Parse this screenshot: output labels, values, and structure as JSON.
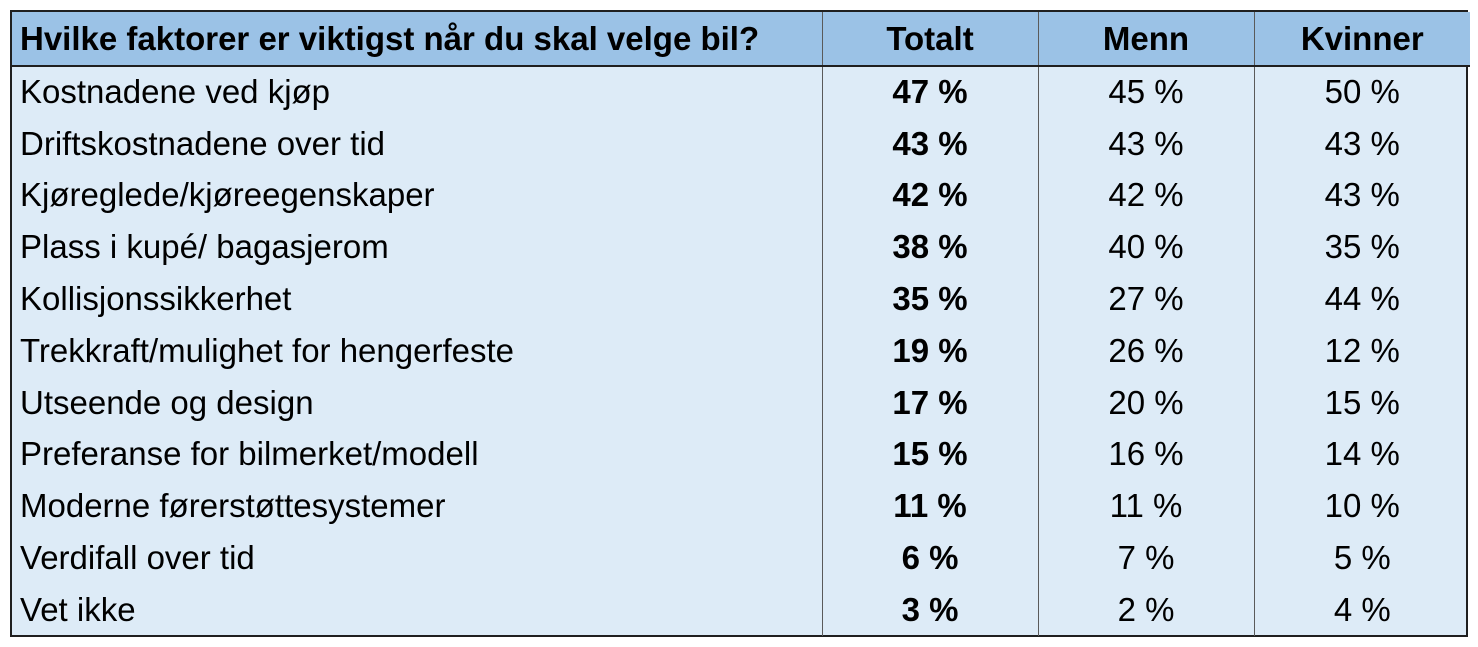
{
  "table": {
    "headers": {
      "question": "Hvilke faktorer er viktigst når du skal velge bil?",
      "total": "Totalt",
      "men": "Menn",
      "women": "Kvinner"
    },
    "rows": [
      {
        "factor": "Kostnadene ved kjøp",
        "total": "47 %",
        "men": "45 %",
        "women": "50 %"
      },
      {
        "factor": "Driftskostnadene over tid",
        "total": "43 %",
        "men": "43 %",
        "women": "43 %"
      },
      {
        "factor": "Kjøreglede/kjøreegenskaper",
        "total": "42 %",
        "men": "42 %",
        "women": "43 %"
      },
      {
        "factor": "Plass i kupé/ bagasjerom",
        "total": "38 %",
        "men": "40 %",
        "women": "35 %"
      },
      {
        "factor": "Kollisjonssikkerhet",
        "total": "35 %",
        "men": "27 %",
        "women": "44 %"
      },
      {
        "factor": "Trekkraft/mulighet for hengerfeste",
        "total": "19 %",
        "men": "26 %",
        "women": "12 %"
      },
      {
        "factor": "Utseende og design",
        "total": "17 %",
        "men": "20 %",
        "women": "15 %"
      },
      {
        "factor": "Preferanse for bilmerket/modell",
        "total": "15 %",
        "men": "16 %",
        "women": "14 %"
      },
      {
        "factor": "Moderne førerstøttesystemer",
        "total": "11 %",
        "men": "11 %",
        "women": "10 %"
      },
      {
        "factor": "Verdifall over tid",
        "total": "6 %",
        "men": "7 %",
        "women": "5 %"
      },
      {
        "factor": "Vet ikke",
        "total": "3 %",
        "men": "2 %",
        "women": "4 %"
      }
    ]
  },
  "colors": {
    "header_background": "#9bc2e6",
    "body_background": "#ddebf7",
    "border": "#1f1f1f"
  }
}
